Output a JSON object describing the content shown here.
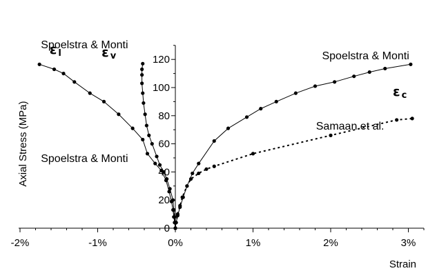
{
  "chart_data": {
    "type": "line",
    "xlabel": "Strain",
    "ylabel": "Axial Stress (MPa)",
    "xlim": [
      -2,
      3.2
    ],
    "ylim": [
      0,
      130
    ],
    "x_unit": "%",
    "x_ticks": [
      -2,
      -1,
      0,
      1,
      2,
      3
    ],
    "x_tick_labels": [
      "-2%",
      "-1%",
      "0%",
      "1%",
      "2%",
      "3%"
    ],
    "y_ticks": [
      0,
      20,
      40,
      60,
      80,
      100,
      120
    ],
    "y_tick_labels": [
      "0",
      "20",
      "40",
      "60",
      "80",
      "100",
      "120"
    ],
    "grid": false,
    "series": [
      {
        "style": "solid",
        "points": [
          [
            0,
            0
          ],
          [
            -0.01,
            4
          ],
          [
            -0.02,
            8
          ],
          [
            -0.03,
            13
          ],
          [
            -0.05,
            19
          ],
          [
            -0.08,
            26
          ],
          [
            -0.12,
            34
          ],
          [
            -0.18,
            41
          ],
          [
            -0.26,
            46
          ],
          [
            -0.36,
            53
          ],
          [
            -0.42,
            63
          ],
          [
            -0.55,
            71
          ],
          [
            -0.73,
            81
          ],
          [
            -0.92,
            90
          ],
          [
            -1.1,
            96
          ],
          [
            -1.3,
            104
          ],
          [
            -1.44,
            110
          ],
          [
            -1.56,
            113
          ],
          [
            -1.75,
            116.5
          ]
        ]
      },
      {
        "style": "solid",
        "points": [
          [
            0,
            0
          ],
          [
            -0.005,
            4
          ],
          [
            -0.01,
            8
          ],
          [
            -0.02,
            13
          ],
          [
            -0.03,
            20
          ],
          [
            -0.07,
            28
          ],
          [
            -0.11,
            35
          ],
          [
            -0.15,
            40
          ],
          [
            -0.2,
            45
          ],
          [
            -0.24,
            51
          ],
          [
            -0.3,
            60
          ],
          [
            -0.34,
            66
          ],
          [
            -0.37,
            73
          ],
          [
            -0.39,
            81
          ],
          [
            -0.41,
            89
          ],
          [
            -0.42,
            96
          ],
          [
            -0.43,
            103
          ],
          [
            -0.43,
            109
          ],
          [
            -0.43,
            113
          ],
          [
            -0.42,
            117
          ]
        ]
      },
      {
        "style": "solid",
        "points": [
          [
            0,
            0
          ],
          [
            0.01,
            4
          ],
          [
            0.03,
            9
          ],
          [
            0.06,
            15
          ],
          [
            0.1,
            22
          ],
          [
            0.15,
            30
          ],
          [
            0.22,
            39
          ],
          [
            0.3,
            46
          ],
          [
            0.5,
            62
          ],
          [
            0.68,
            71
          ],
          [
            0.92,
            79
          ],
          [
            1.1,
            85
          ],
          [
            1.3,
            90
          ],
          [
            1.55,
            96
          ],
          [
            1.8,
            101
          ],
          [
            2.05,
            104
          ],
          [
            2.3,
            108
          ],
          [
            2.5,
            111
          ],
          [
            2.7,
            113.5
          ],
          [
            3.03,
            116.5
          ]
        ],
        "label": "ε c"
      },
      {
        "style": "dotted",
        "points": [
          [
            0,
            0
          ],
          [
            0.01,
            4
          ],
          [
            0.03,
            10
          ],
          [
            0.06,
            16
          ],
          [
            0.09,
            22
          ],
          [
            0.15,
            30
          ],
          [
            0.2,
            35
          ],
          [
            0.3,
            39
          ],
          [
            0.4,
            42
          ],
          [
            0.5,
            44
          ],
          [
            1.0,
            53
          ],
          [
            2.0,
            66
          ],
          [
            2.85,
            77
          ],
          [
            3.05,
            78
          ]
        ],
        "label": "Samaan et al."
      }
    ],
    "annotations": [
      {
        "text": "Spoelstra & Monti",
        "at": [
          -1.17,
          128
        ]
      },
      {
        "text": "Spoelstra & Monti",
        "at": [
          -1.17,
          47
        ]
      },
      {
        "text": "Spoelstra & Monti",
        "at": [
          2.45,
          120
        ]
      },
      {
        "text": "Samaan et al.",
        "at": [
          2.25,
          70
        ]
      }
    ],
    "symbols": [
      {
        "base": "ε",
        "sub": "l",
        "at": [
          -1.62,
          124
        ]
      },
      {
        "base": "ε",
        "sub": "v",
        "at": [
          -0.95,
          122
        ]
      },
      {
        "base": "ε",
        "sub": "c",
        "at": [
          2.8,
          94
        ]
      }
    ]
  }
}
